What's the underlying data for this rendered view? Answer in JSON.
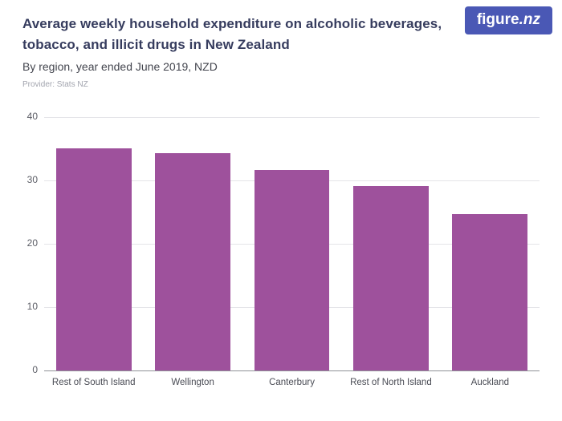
{
  "header": {
    "title": "Average weekly household expenditure on alcoholic beverages, tobacco, and illicit drugs in New Zealand",
    "subtitle": "By region, year ended June 2019, NZD",
    "provider": "Provider: Stats NZ"
  },
  "logo": {
    "name": "figure",
    "tld": ".nz"
  },
  "colors": {
    "bar": "#9e519c",
    "logo_background": "#4a58b5",
    "title_text": "#363c5e",
    "gridline": "#e4e4e8",
    "axis_line": "#8f9097"
  },
  "chart_data": {
    "type": "bar",
    "title": "Average weekly household expenditure on alcoholic beverages, tobacco, and illicit drugs in New Zealand",
    "subtitle": "By region, year ended June 2019, NZD",
    "provider": "Provider: Stats NZ",
    "categories": [
      "Rest of South Island",
      "Wellington",
      "Canterbury",
      "Rest of North Island",
      "Auckland"
    ],
    "values": [
      35.2,
      34.4,
      31.8,
      29.3,
      24.8
    ],
    "xlabel": "",
    "ylabel": "",
    "ylim": [
      0,
      40
    ],
    "yticks": [
      0,
      10,
      20,
      30,
      40
    ],
    "grid": true,
    "legend": false,
    "bar_color": "#9e519c"
  }
}
